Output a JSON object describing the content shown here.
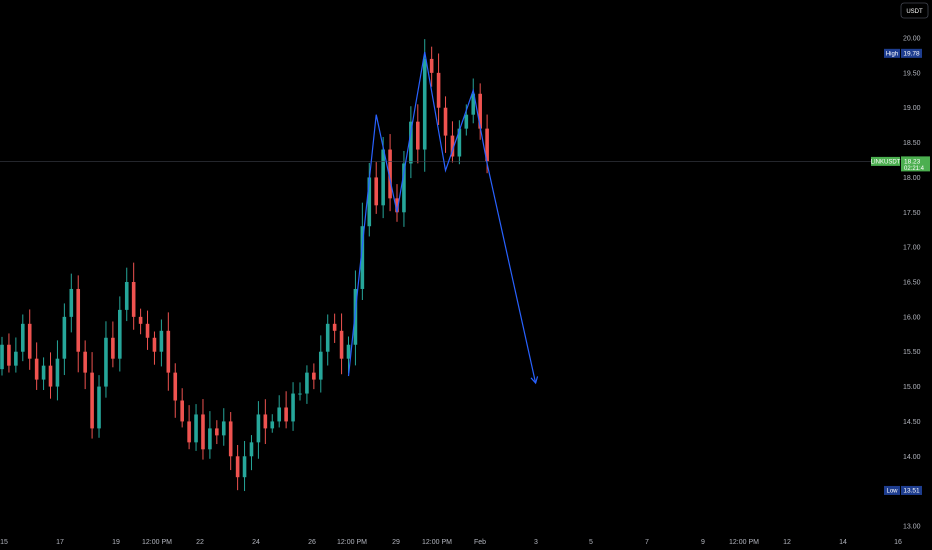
{
  "currency_button": "USDT",
  "chart_data": {
    "type": "candlestick",
    "symbol": "LINKUSDT",
    "currency": "USDT",
    "ylim": [
      13.0,
      20.25
    ],
    "y_ticks": [
      "13.00",
      "13.50",
      "14.00",
      "14.50",
      "15.00",
      "15.50",
      "16.00",
      "16.50",
      "17.00",
      "17.50",
      "18.00",
      "18.50",
      "19.00",
      "19.50",
      "20.00"
    ],
    "x_ticks": [
      "15",
      "17",
      "19",
      "12:00 PM",
      "22",
      "24",
      "26",
      "12:00 PM",
      "29",
      "12:00 PM",
      "Feb",
      "3",
      "5",
      "7",
      "9",
      "12:00 PM",
      "12",
      "14",
      "16"
    ],
    "high_label": "High",
    "high_value": "19.78",
    "low_label": "Low",
    "low_value": "13.51",
    "last_price": "18.23",
    "countdown": "02:21:4",
    "colors": {
      "up": "#26a69a",
      "down": "#ef5350",
      "projection": "#2962ff",
      "last_price": "#4caf50",
      "high_low_bg": "#1e3d8f"
    },
    "candles_close": [
      15.6,
      15.3,
      15.5,
      15.9,
      15.4,
      15.1,
      15.3,
      15.0,
      15.4,
      16.0,
      16.4,
      15.5,
      15.2,
      14.4,
      15.0,
      15.7,
      15.4,
      16.1,
      16.5,
      16.0,
      15.9,
      15.7,
      15.5,
      15.8,
      15.2,
      14.8,
      14.5,
      14.2,
      14.6,
      14.1,
      14.4,
      14.3,
      14.5,
      14.0,
      13.7,
      14.0,
      14.2,
      14.6,
      14.4,
      14.5,
      14.7,
      14.5,
      14.9,
      14.9,
      15.2,
      15.1,
      15.5,
      15.9,
      15.8,
      15.4,
      15.6,
      16.4,
      17.3,
      18.0,
      17.6,
      18.4,
      17.7,
      17.5,
      18.2,
      18.8,
      18.4,
      19.7,
      19.5,
      19.0,
      18.6,
      18.3,
      18.7,
      18.9,
      19.2,
      18.7,
      18.23
    ],
    "projection_path": [
      {
        "i": 50,
        "price": 15.15
      },
      {
        "i": 54,
        "price": 18.9
      },
      {
        "i": 57,
        "price": 17.5
      },
      {
        "i": 61,
        "price": 19.8
      },
      {
        "i": 64,
        "price": 18.1
      },
      {
        "i": 68,
        "price": 19.25
      },
      {
        "i": 70,
        "price": 18.2
      },
      {
        "i": 77,
        "price": 15.05
      }
    ]
  }
}
